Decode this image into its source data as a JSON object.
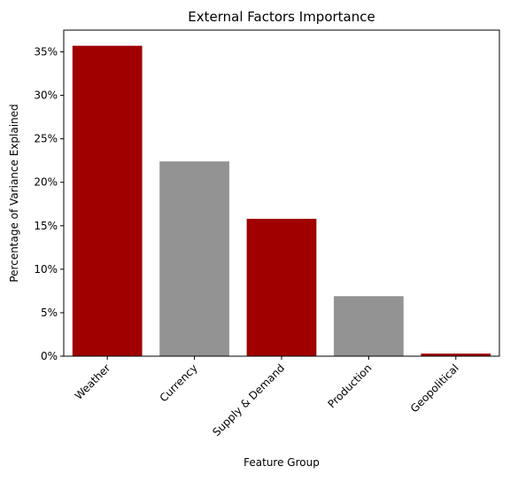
{
  "chart_data": {
    "type": "bar",
    "title": "External Factors Importance",
    "xlabel": "Feature Group",
    "ylabel": "Percentage of Variance Explained",
    "categories": [
      "Weather",
      "Currency",
      "Supply & Demand",
      "Production",
      "Geopolitical"
    ],
    "values": [
      35.7,
      22.4,
      15.8,
      6.9,
      0.3
    ],
    "bar_colors": [
      "#a00000",
      "#939393",
      "#a00000",
      "#939393",
      "#a00000"
    ],
    "ylim": [
      0,
      37.5
    ],
    "yticks": [
      0,
      5,
      10,
      15,
      20,
      25,
      30,
      35
    ],
    "ytick_labels": [
      "0%",
      "5%",
      "10%",
      "15%",
      "20%",
      "25%",
      "30%",
      "35%"
    ],
    "grid": false,
    "legend": "none",
    "xtick_rotation_deg": 45
  }
}
